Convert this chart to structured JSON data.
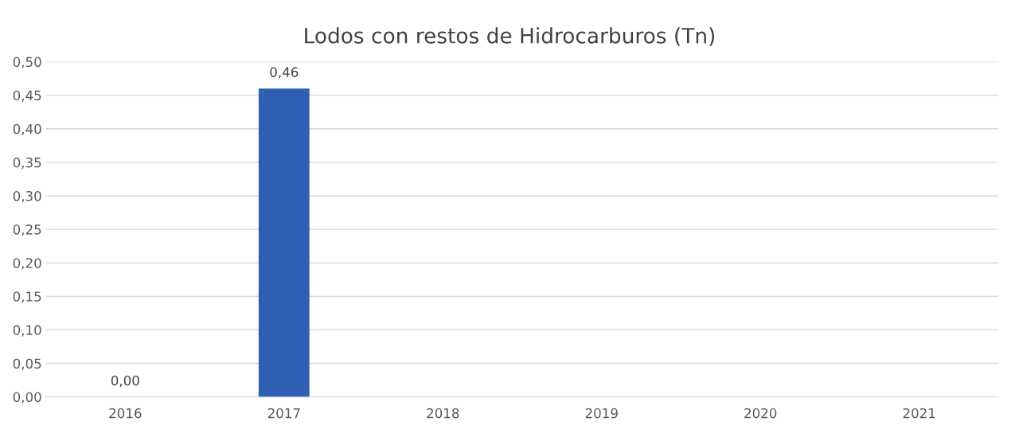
{
  "chart_data": {
    "type": "bar",
    "title": "Lodos con restos de Hidrocarburos (Tn)",
    "categories": [
      "2016",
      "2017",
      "2018",
      "2019",
      "2020",
      "2021"
    ],
    "values": [
      0.0,
      0.46,
      null,
      null,
      null,
      null
    ],
    "value_labels": [
      "0,00",
      "0,46",
      null,
      null,
      null,
      null
    ],
    "color": "#2f5fb3",
    "ylim": [
      0,
      0.5
    ],
    "yticks": [
      {
        "value": 0,
        "label": "0,00"
      },
      {
        "value": 0.05,
        "label": "0,05"
      },
      {
        "value": 0.1,
        "label": "0,10"
      },
      {
        "value": 0.15,
        "label": "0,15"
      },
      {
        "value": 0.2,
        "label": "0,20"
      },
      {
        "value": 0.25,
        "label": "0,25"
      },
      {
        "value": 0.3,
        "label": "0,30"
      },
      {
        "value": 0.35,
        "label": "0,35"
      },
      {
        "value": 0.4,
        "label": "0,40"
      },
      {
        "value": 0.45,
        "label": "0,45"
      },
      {
        "value": 0.5,
        "label": "0,50"
      }
    ],
    "grid": "y"
  }
}
